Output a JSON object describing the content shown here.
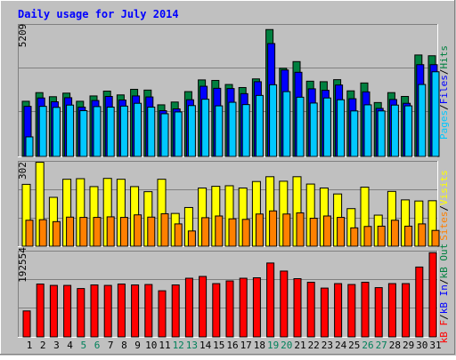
{
  "chart_data": [
    {
      "type": "bar",
      "title": "Daily usage for July 2014",
      "panel": "hits-files-pages",
      "categories": [
        "1",
        "2",
        "3",
        "4",
        "5",
        "6",
        "7",
        "8",
        "9",
        "10",
        "11",
        "12",
        "13",
        "14",
        "15",
        "16",
        "17",
        "18",
        "19",
        "20",
        "21",
        "22",
        "23",
        "24",
        "25",
        "26",
        "27",
        "28",
        "29",
        "30",
        "31"
      ],
      "weekend_days": [
        "5",
        "6",
        "12",
        "13",
        "19",
        "20",
        "26",
        "27"
      ],
      "ymax_label": "5209",
      "ylim": [
        0,
        5209
      ],
      "right_legend": [
        {
          "text": "Pages",
          "color": "#00c8ff"
        },
        {
          "text": "/",
          "color": "#000000"
        },
        {
          "text": "Files",
          "color": "#0000ff"
        },
        {
          "text": "/",
          "color": "#000000"
        },
        {
          "text": "Hits",
          "color": "#008040"
        }
      ],
      "series": [
        {
          "name": "Hits",
          "color": "#008040",
          "values": [
            2170,
            2510,
            2350,
            2490,
            2170,
            2380,
            2570,
            2420,
            2640,
            2610,
            2030,
            2140,
            2550,
            3010,
            2990,
            2830,
            2710,
            3050,
            4990,
            3470,
            3730,
            2960,
            2940,
            3020,
            2580,
            2890,
            2120,
            2510,
            2360,
            3990,
            3960
          ]
        },
        {
          "name": "Files",
          "color": "#0000ff",
          "values": [
            1970,
            2300,
            2150,
            2310,
            1940,
            2200,
            2360,
            2220,
            2380,
            2340,
            1800,
            1870,
            2230,
            2760,
            2680,
            2670,
            2470,
            2940,
            4440,
            3400,
            3310,
            2660,
            2600,
            2810,
            2270,
            2540,
            1890,
            2240,
            2090,
            3610,
            3610
          ]
        },
        {
          "name": "Pages",
          "color": "#00c8ff",
          "values": [
            770,
            1970,
            1930,
            2020,
            1800,
            1960,
            1940,
            1980,
            2090,
            1940,
            1680,
            1750,
            2000,
            2250,
            1990,
            2130,
            2040,
            2400,
            2820,
            2550,
            2330,
            2100,
            2300,
            2230,
            1790,
            2030,
            1790,
            2020,
            1990,
            2830,
            3330
          ]
        }
      ]
    },
    {
      "type": "bar",
      "panel": "visits-sites",
      "categories": [
        "1",
        "2",
        "3",
        "4",
        "5",
        "6",
        "7",
        "8",
        "9",
        "10",
        "11",
        "12",
        "13",
        "14",
        "15",
        "16",
        "17",
        "18",
        "19",
        "20",
        "21",
        "22",
        "23",
        "24",
        "25",
        "26",
        "27",
        "28",
        "29",
        "30",
        "31"
      ],
      "ymax_label": "302",
      "ylim": [
        0,
        302
      ],
      "right_legend": [
        {
          "text": "Sites",
          "color": "#ff8000"
        },
        {
          "text": "/",
          "color": "#000000"
        },
        {
          "text": "Visits",
          "color": "#ffff00"
        }
      ],
      "series": [
        {
          "name": "Visits",
          "color": "#ffff00",
          "values": [
            219,
            297,
            173,
            237,
            239,
            211,
            240,
            237,
            211,
            193,
            237,
            116,
            137,
            206,
            212,
            214,
            206,
            229,
            246,
            230,
            246,
            220,
            206,
            185,
            133,
            209,
            110,
            194,
            164,
            160,
            161
          ]
        },
        {
          "name": "Sites",
          "color": "#ff8000",
          "values": [
            92,
            94,
            87,
            103,
            102,
            102,
            104,
            102,
            111,
            103,
            115,
            79,
            54,
            101,
            107,
            97,
            95,
            114,
            125,
            114,
            118,
            99,
            107,
            102,
            65,
            70,
            71,
            92,
            71,
            79,
            56
          ]
        }
      ]
    },
    {
      "type": "bar",
      "panel": "kbytes",
      "categories": [
        "1",
        "2",
        "3",
        "4",
        "5",
        "6",
        "7",
        "8",
        "9",
        "10",
        "11",
        "12",
        "13",
        "14",
        "15",
        "16",
        "17",
        "18",
        "19",
        "20",
        "21",
        "22",
        "23",
        "24",
        "25",
        "26",
        "27",
        "28",
        "29",
        "30",
        "31"
      ],
      "ymax_label": "192554",
      "ylim": [
        0,
        192554
      ],
      "right_legend": [
        {
          "text": "kB F",
          "color": "#ff0000"
        },
        {
          "text": "/",
          "color": "#000000"
        },
        {
          "text": "kB In",
          "color": "#0000ff"
        },
        {
          "text": "/",
          "color": "#000000"
        },
        {
          "text": "kB Out",
          "color": "#008040"
        }
      ],
      "series": [
        {
          "name": "kB F",
          "color": "#ff0000",
          "values": [
            58000,
            118000,
            115000,
            115000,
            108000,
            116000,
            115000,
            118000,
            116000,
            117000,
            103000,
            116000,
            131000,
            135000,
            119000,
            125000,
            131000,
            132000,
            165000,
            147000,
            130000,
            122000,
            109000,
            119000,
            117000,
            122000,
            110000,
            119000,
            119000,
            156000,
            188000
          ]
        }
      ]
    }
  ]
}
